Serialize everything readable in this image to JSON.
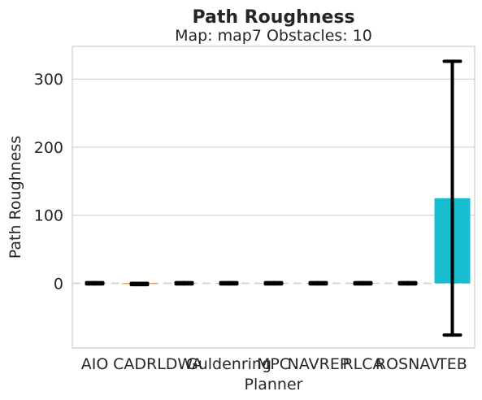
{
  "chart_data": {
    "type": "bar",
    "title": "Path Roughness",
    "subtitle": "Map: map7 Obstacles: 10",
    "xlabel": "Planner",
    "ylabel": "Path Roughness",
    "categories": [
      "AIO",
      "CADRL",
      "DWA",
      "Guldenring",
      "MPC",
      "NAVREP",
      "RLCA",
      "ROSNAV",
      "TEB"
    ],
    "values": [
      0,
      -1,
      0,
      0,
      0,
      0,
      0,
      0,
      125
    ],
    "errors": [
      1,
      1,
      1,
      1,
      1,
      1,
      1,
      1,
      201
    ],
    "bar_colors": [
      "#1f77b4",
      "#ff7f0e",
      "#2ca02c",
      "#d62728",
      "#9467bd",
      "#8c564b",
      "#e377c2",
      "#7f7f7f",
      "#17becf"
    ],
    "error_color": "#000000",
    "ylim": [
      -95,
      348
    ],
    "yticks": [
      0,
      100,
      200,
      300
    ],
    "grid": true,
    "zero_line": "dashed"
  }
}
